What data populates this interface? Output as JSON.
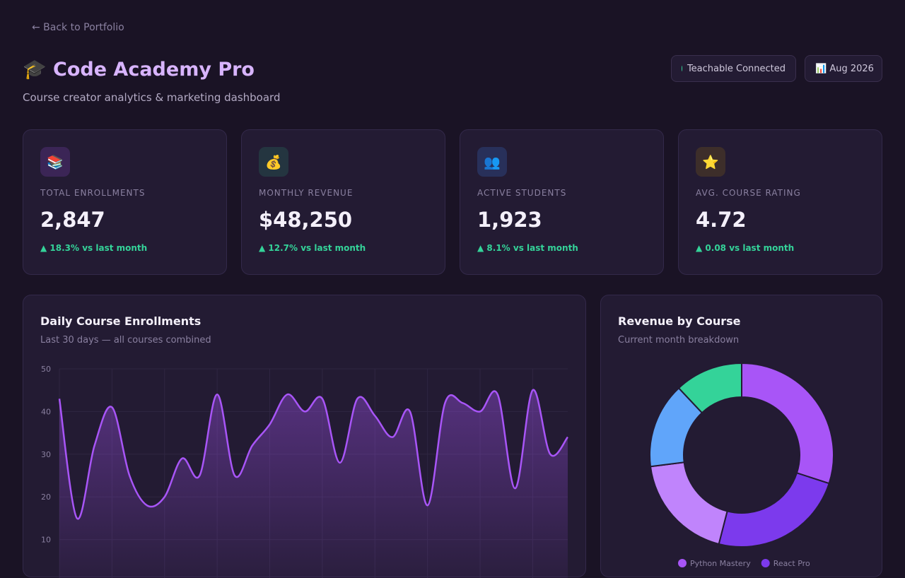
{
  "header": {
    "back_link": "← Back to Portfolio",
    "title": "Code Academy Pro",
    "subtitle": "Course creator analytics & marketing dashboard",
    "badges": [
      "Teachable Connected",
      "Aug 2026"
    ]
  },
  "stats": [
    {
      "label": "TOTAL ENROLLMENTS",
      "value": "2,847",
      "change": "▲ 18.3% vs last month"
    },
    {
      "label": "MONTHLY REVENUE",
      "value": "$48,250",
      "change": "▲ 12.7% vs last month"
    },
    {
      "label": "ACTIVE STUDENTS",
      "value": "1,923",
      "change": "▲ 8.1% vs last month"
    },
    {
      "label": "AVG. COURSE RATING",
      "value": "4.72",
      "change": "▲ 0.08 vs last month"
    }
  ],
  "chart_data": [
    {
      "type": "line",
      "title": "Daily Course Enrollments",
      "subtitle": "Last 30 days — all courses combined",
      "values": [
        43,
        15,
        32,
        41,
        25,
        18,
        20,
        29,
        25,
        44,
        25,
        32,
        37,
        44,
        40,
        43,
        28,
        43,
        39,
        34,
        40,
        18,
        42,
        42,
        40,
        44,
        22,
        45,
        30,
        34
      ],
      "color": "#a855f7",
      "ylim": [
        0,
        50
      ],
      "yticks": [
        10,
        20,
        30,
        40,
        50
      ],
      "grid": true
    },
    {
      "type": "donut",
      "title": "Revenue by Course",
      "subtitle": "Current month breakdown",
      "categories": [
        "Python Mastery",
        "React Pro",
        null,
        null,
        null
      ],
      "values": [
        30,
        24,
        19,
        15,
        12
      ],
      "colors": [
        "#a855f7",
        "#7c3aed",
        "#c084fc",
        "#60a5fa",
        "#34d399"
      ]
    }
  ]
}
